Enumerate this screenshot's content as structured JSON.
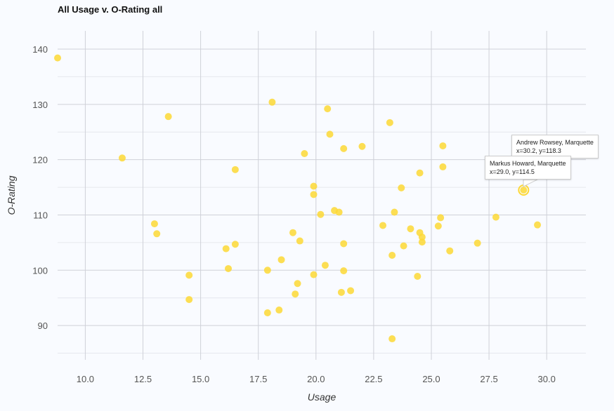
{
  "chart_data": {
    "type": "scatter",
    "title": "All Usage v. O-Rating all",
    "xlabel": "Usage",
    "ylabel": "O-Rating",
    "xlim": [
      8.8,
      31.7
    ],
    "ylim": [
      83.8,
      143.3
    ],
    "xticks": [
      "10.0",
      "12.5",
      "15.0",
      "17.5",
      "20.0",
      "22.5",
      "25.0",
      "27.5",
      "30.0"
    ],
    "yticks": [
      "90",
      "100",
      "110",
      "120",
      "130",
      "140"
    ],
    "grid": true,
    "color": "#fdd835",
    "points": [
      [
        8.8,
        138.4
      ],
      [
        11.6,
        120.3
      ],
      [
        13.6,
        127.8
      ],
      [
        13.0,
        108.4
      ],
      [
        13.1,
        106.6
      ],
      [
        14.5,
        99.1
      ],
      [
        14.5,
        94.7
      ],
      [
        16.1,
        103.9
      ],
      [
        16.5,
        104.7
      ],
      [
        16.2,
        100.3
      ],
      [
        16.5,
        118.2
      ],
      [
        18.1,
        130.4
      ],
      [
        17.9,
        100.0
      ],
      [
        17.9,
        92.3
      ],
      [
        18.4,
        92.8
      ],
      [
        18.5,
        101.9
      ],
      [
        19.0,
        106.8
      ],
      [
        19.3,
        105.3
      ],
      [
        19.2,
        97.6
      ],
      [
        19.1,
        95.7
      ],
      [
        19.5,
        121.1
      ],
      [
        19.9,
        115.2
      ],
      [
        19.9,
        113.7
      ],
      [
        19.9,
        99.2
      ],
      [
        20.2,
        110.1
      ],
      [
        20.4,
        100.9
      ],
      [
        20.5,
        129.2
      ],
      [
        20.6,
        124.6
      ],
      [
        20.8,
        110.8
      ],
      [
        21.0,
        110.5
      ],
      [
        21.2,
        122.0
      ],
      [
        21.2,
        104.8
      ],
      [
        21.2,
        99.9
      ],
      [
        21.1,
        96.0
      ],
      [
        21.5,
        96.3
      ],
      [
        22.0,
        122.4
      ],
      [
        23.2,
        126.7
      ],
      [
        22.9,
        108.1
      ],
      [
        23.4,
        110.5
      ],
      [
        23.3,
        102.7
      ],
      [
        23.3,
        87.6
      ],
      [
        23.7,
        114.9
      ],
      [
        23.8,
        104.4
      ],
      [
        24.1,
        107.5
      ],
      [
        24.5,
        117.6
      ],
      [
        24.5,
        106.8
      ],
      [
        24.6,
        106.0
      ],
      [
        24.6,
        105.1
      ],
      [
        24.4,
        98.9
      ],
      [
        25.3,
        108.0
      ],
      [
        25.4,
        109.5
      ],
      [
        25.5,
        122.5
      ],
      [
        25.5,
        118.7
      ],
      [
        25.8,
        103.5
      ],
      [
        27.0,
        104.9
      ],
      [
        27.8,
        109.6
      ],
      [
        29.6,
        108.2
      ],
      [
        30.2,
        118.3
      ],
      [
        29.0,
        114.5
      ]
    ],
    "highlighted": {
      "x": 29.0,
      "y": 114.5
    },
    "tooltips": [
      {
        "name": "Andrew Rowsey, Marquette",
        "values": "x=30.2, y=118.3"
      },
      {
        "name": "Markus Howard, Marquette",
        "values": "x=29.0, y=114.5"
      }
    ]
  }
}
